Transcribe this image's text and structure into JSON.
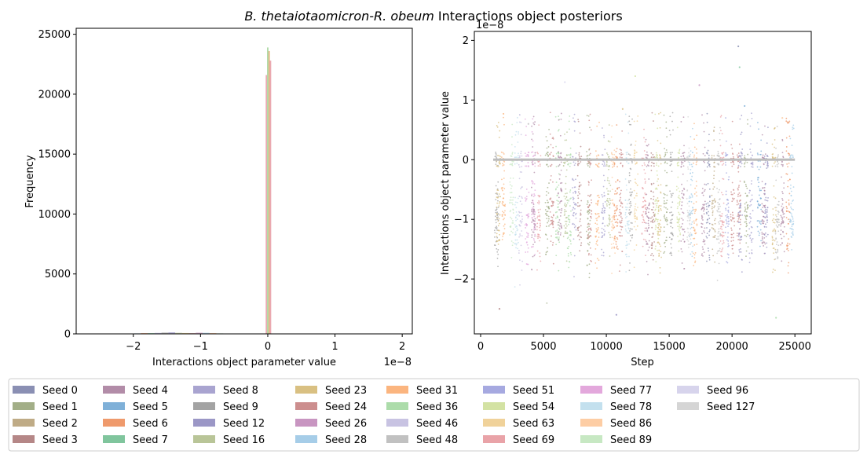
{
  "figure": {
    "title_italic": "B. thetaiotaomicron-R. obeum",
    "title_rest": " Interactions object posteriors"
  },
  "chart_data": [
    {
      "type": "histogram",
      "xlabel": "Interactions object parameter value",
      "ylabel": "Frequency",
      "x_offset_text": "1e−8",
      "xlim": [
        -2.85,
        2.15
      ],
      "ylim": [
        0,
        25500
      ],
      "x_scale_note": "values in units of 1e-8",
      "xticks": [
        -2,
        -1,
        0,
        1,
        2
      ],
      "xtick_labels": [
        "−2",
        "−1",
        "0",
        "1",
        "2"
      ],
      "yticks": [
        0,
        5000,
        10000,
        15000,
        20000,
        25000
      ],
      "ytick_labels": [
        "0",
        "5000",
        "10000",
        "15000",
        "20000",
        "25000"
      ],
      "peak_bins": {
        "bin_width": 0.022,
        "centers": [
          -0.02,
          0.0,
          0.02,
          0.04
        ],
        "values": [
          21600,
          23900,
          23600,
          22800
        ],
        "colors": [
          "#e8a0a8",
          "#a8d8a0",
          "#e0b27a",
          "#e8a0a8"
        ]
      },
      "low_bins": {
        "start": -2.5,
        "end": -0.05,
        "count": 24,
        "values": [
          5,
          8,
          10,
          20,
          30,
          40,
          60,
          60,
          80,
          110,
          130,
          90,
          70,
          60,
          100,
          90,
          60,
          40,
          30,
          30,
          20,
          20,
          10,
          5
        ]
      }
    },
    {
      "type": "scatter",
      "xlabel": "Step",
      "ylabel": "Interactions object parameter value",
      "y_offset_text": "1e−8",
      "xlim": [
        -500,
        26300
      ],
      "ylim": [
        -2.92,
        2.15
      ],
      "xticks": [
        0,
        5000,
        10000,
        15000,
        20000,
        25000
      ],
      "xtick_labels": [
        "0",
        "5000",
        "10000",
        "15000",
        "20000",
        "25000"
      ],
      "yticks": [
        -2,
        -1,
        0,
        1,
        2
      ],
      "ytick_labels": [
        "−2",
        "−1",
        "0",
        "1",
        "2"
      ],
      "x_range_of_samples": [
        1000,
        25000
      ],
      "zero_line": {
        "y": 0.0,
        "color": "#bdbdbd"
      },
      "bands": {
        "main_center": -1.0,
        "main_spread": 0.35,
        "zero_y": 0.0
      },
      "outlier_points": [
        {
          "x": 20500,
          "y": 1.9
        },
        {
          "x": 20600,
          "y": 1.55
        },
        {
          "x": 17400,
          "y": 1.25
        },
        {
          "x": 12300,
          "y": 1.4
        },
        {
          "x": 6700,
          "y": 1.3
        },
        {
          "x": 21000,
          "y": 0.9
        },
        {
          "x": 11300,
          "y": 0.85
        },
        {
          "x": 3800,
          "y": 0.6
        },
        {
          "x": 24000,
          "y": 0.7
        },
        {
          "x": 1500,
          "y": -2.5
        },
        {
          "x": 10800,
          "y": -2.6
        },
        {
          "x": 23500,
          "y": -2.65
        }
      ]
    }
  ],
  "legend": {
    "columns": 9,
    "items": [
      {
        "label": "Seed 0",
        "color": "#8a8fb3"
      },
      {
        "label": "Seed 1",
        "color": "#a2ae87"
      },
      {
        "label": "Seed 2",
        "color": "#bfab86"
      },
      {
        "label": "Seed 3",
        "color": "#b58787"
      },
      {
        "label": "Seed 4",
        "color": "#b28ca8"
      },
      {
        "label": "Seed 5",
        "color": "#7fb0d8"
      },
      {
        "label": "Seed 6",
        "color": "#ef9a6c"
      },
      {
        "label": "Seed 7",
        "color": "#80c59d"
      },
      {
        "label": "Seed 8",
        "color": "#a9a4d0"
      },
      {
        "label": "Seed 9",
        "color": "#a3a3a3"
      },
      {
        "label": "Seed 12",
        "color": "#9b97c6"
      },
      {
        "label": "Seed 16",
        "color": "#b9c598"
      },
      {
        "label": "Seed 23",
        "color": "#d9c082"
      },
      {
        "label": "Seed 24",
        "color": "#cc8e8e"
      },
      {
        "label": "Seed 26",
        "color": "#c895c1"
      },
      {
        "label": "Seed 28",
        "color": "#a6cde8"
      },
      {
        "label": "Seed 31",
        "color": "#fbb57f"
      },
      {
        "label": "Seed 36",
        "color": "#acdcaa"
      },
      {
        "label": "Seed 46",
        "color": "#c8c3e2"
      },
      {
        "label": "Seed 48",
        "color": "#c1c1c1"
      },
      {
        "label": "Seed 51",
        "color": "#a6a9e0"
      },
      {
        "label": "Seed 54",
        "color": "#d3e2a3"
      },
      {
        "label": "Seed 63",
        "color": "#f0d29a"
      },
      {
        "label": "Seed 69",
        "color": "#e9a3a8"
      },
      {
        "label": "Seed 77",
        "color": "#e3a8dc"
      },
      {
        "label": "Seed 78",
        "color": "#c3e0ee"
      },
      {
        "label": "Seed 86",
        "color": "#fdcda4"
      },
      {
        "label": "Seed 89",
        "color": "#c7e8c3"
      },
      {
        "label": "Seed 96",
        "color": "#d7d4ec"
      },
      {
        "label": "Seed 127",
        "color": "#d5d5d5"
      }
    ]
  }
}
